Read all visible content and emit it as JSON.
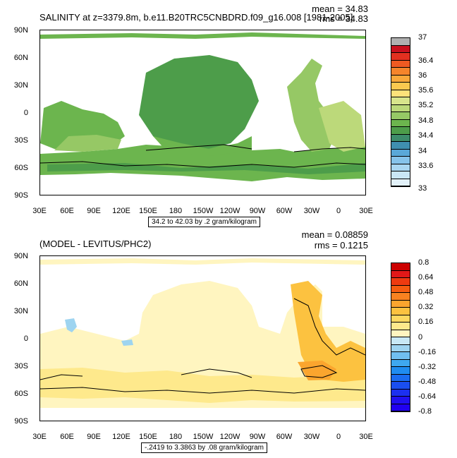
{
  "top": {
    "title": "SALINITY at z=3379.8m, b.e11.B20TRC5CNBDRD.f09_g16.008 [1981-2005]",
    "mean": "mean = 34.83",
    "rms": "rms = 34.83",
    "info": "34.2 to 42.03 by .2 gram/kilogram",
    "colorbar_labels": [
      "37",
      "36.4",
      "36",
      "35.6",
      "35.2",
      "34.8",
      "34.4",
      "34",
      "33.6",
      "33"
    ],
    "colorbar_colors": [
      "#b0b0b0",
      "#c8101e",
      "#e33020",
      "#ef5a22",
      "#f5852b",
      "#f9a83a",
      "#fbc84f",
      "#fde27a",
      "#d8e58c",
      "#bcd97a",
      "#96c865",
      "#6cb54e",
      "#4d9d4a",
      "#3d8c6b",
      "#3f8fb0",
      "#5aa8d8",
      "#86c3ea",
      "#a9d6f1",
      "#c9e6f6",
      "#e2f1f9"
    ]
  },
  "bottom": {
    "title": "(MODEL - LEVITUS/PHC2)",
    "mean": "mean = 0.08859",
    "rms": "rms = 0.1215",
    "info": "-.2419 to 3.3863 by .08 gram/kilogram",
    "colorbar_labels": [
      "0.8",
      "0.64",
      "0.48",
      "0.32",
      "0.16",
      "0",
      "-0.16",
      "-0.32",
      "-0.48",
      "-0.64",
      "-0.8"
    ],
    "colorbar_colors": [
      "#cc0000",
      "#e21818",
      "#ee3a10",
      "#f55c10",
      "#f88220",
      "#fba52e",
      "#fcc240",
      "#fdd860",
      "#fee98c",
      "#fff5c0",
      "#c8e8f5",
      "#9ed4f0",
      "#70bff0",
      "#3ea8f0",
      "#1f8cf0",
      "#1a6cf0",
      "#1a4ef0",
      "#1c30f0",
      "#2010f0",
      "#2000f0"
    ]
  },
  "axes": {
    "lat_labels": [
      "90N",
      "60N",
      "30N",
      "0",
      "30S",
      "60S",
      "90S"
    ],
    "lon_labels": [
      "30E",
      "60E",
      "90E",
      "120E",
      "150E",
      "180",
      "150W",
      "120W",
      "90W",
      "60W",
      "30W",
      "0",
      "30E"
    ]
  }
}
